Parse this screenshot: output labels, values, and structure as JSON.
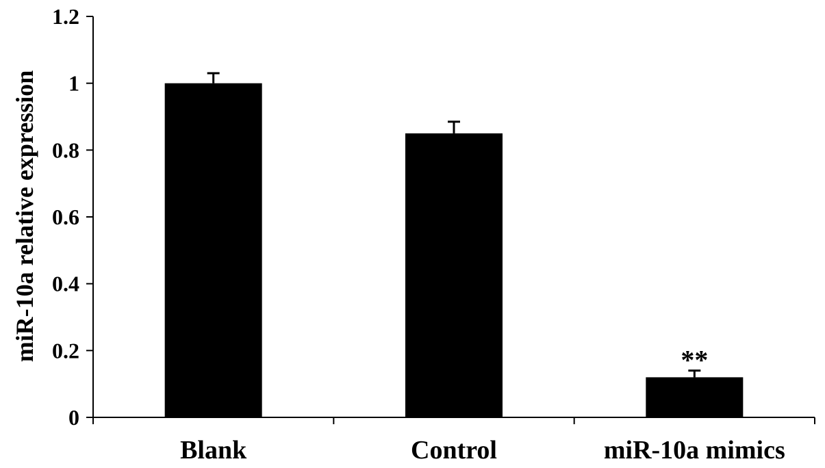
{
  "chart_data": {
    "type": "bar",
    "categories": [
      "Blank",
      "Control",
      "miR-10a mimics"
    ],
    "values": [
      1.0,
      0.85,
      0.12
    ],
    "errors": [
      0.03,
      0.035,
      0.02
    ],
    "annotations": [
      "",
      "",
      "**"
    ],
    "title": "",
    "xlabel": "",
    "ylabel": "miR-10a relative expression",
    "ylim": [
      0,
      1.2
    ],
    "yticks": [
      "0",
      "0.2",
      "0.4",
      "0.6",
      "0.8",
      "1",
      "1.2"
    ],
    "ytick_values": [
      0,
      0.2,
      0.4,
      0.6,
      0.8,
      1.0,
      1.2
    ],
    "grid": false,
    "bar_color": "#000000"
  }
}
